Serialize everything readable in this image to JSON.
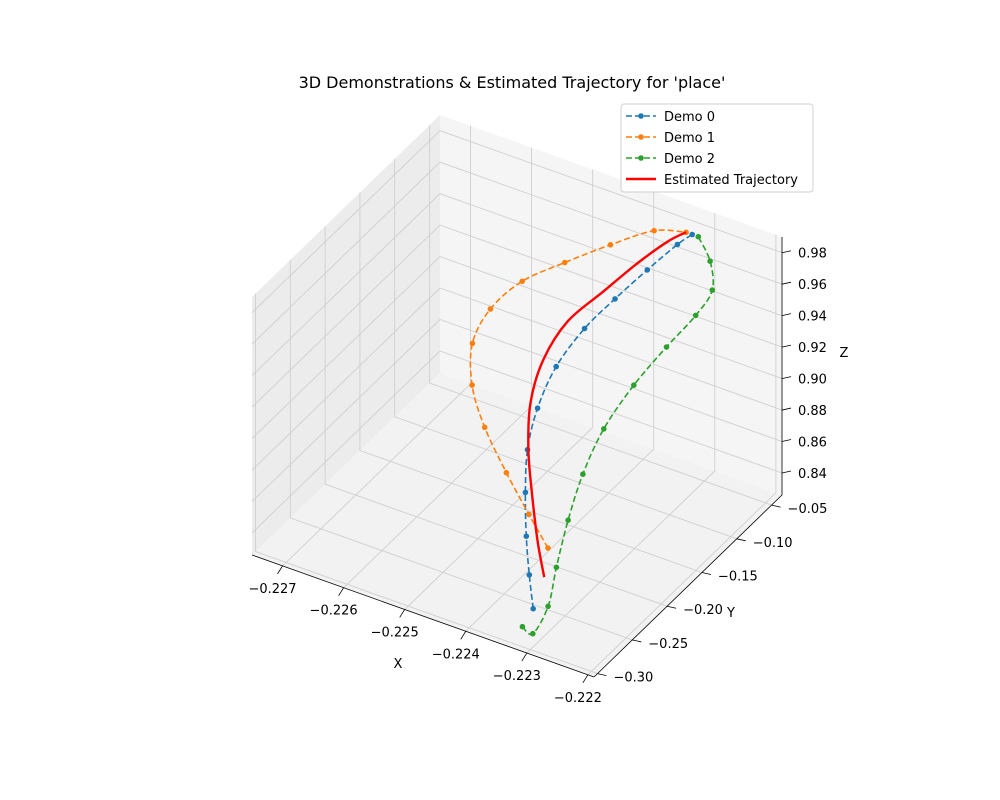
{
  "chart_data": {
    "type": "line3d",
    "title": "3D Demonstrations & Estimated Trajectory for 'place'",
    "xlabel": "X",
    "ylabel": "Y",
    "zlabel": "Z",
    "xticks": [
      "−0.227",
      "−0.226",
      "−0.225",
      "−0.224",
      "−0.223",
      "−0.222"
    ],
    "yticks": [
      "−0.30",
      "−0.25",
      "−0.20",
      "−0.15",
      "−0.10",
      "−0.05"
    ],
    "zticks": [
      "0.84",
      "0.86",
      "0.88",
      "0.90",
      "0.92",
      "0.94",
      "0.96",
      "0.98"
    ],
    "xlim": [
      -0.2275,
      -0.2219
    ],
    "ylim": [
      -0.305,
      -0.035
    ],
    "zlim": [
      0.826,
      0.99
    ],
    "grid": true,
    "legend_position": "top-right",
    "series": [
      {
        "name": "Demo 0",
        "color": "#1f77b4",
        "style": "dashed",
        "marker": "dot",
        "points": [
          {
            "x": -0.22318,
            "y": -0.28,
            "z": 0.841
          },
          {
            "x": -0.22345,
            "y": -0.262,
            "z": 0.851
          },
          {
            "x": -0.22375,
            "y": -0.24,
            "z": 0.862
          },
          {
            "x": -0.22405,
            "y": -0.215,
            "z": 0.875
          },
          {
            "x": -0.2243,
            "y": -0.19,
            "z": 0.888
          },
          {
            "x": -0.22442,
            "y": -0.165,
            "z": 0.902
          },
          {
            "x": -0.2244,
            "y": -0.14,
            "z": 0.918
          },
          {
            "x": -0.22422,
            "y": -0.115,
            "z": 0.934
          },
          {
            "x": -0.22395,
            "y": -0.095,
            "z": 0.948
          },
          {
            "x": -0.22365,
            "y": -0.075,
            "z": 0.962
          },
          {
            "x": -0.22335,
            "y": -0.058,
            "z": 0.975
          },
          {
            "x": -0.2232,
            "y": -0.05,
            "z": 0.98
          }
        ]
      },
      {
        "name": "Demo 1",
        "color": "#ff7f0e",
        "style": "dashed",
        "marker": "dot",
        "points": [
          {
            "x": -0.22385,
            "y": -0.2,
            "z": 0.836
          },
          {
            "x": -0.2243,
            "y": -0.188,
            "z": 0.846
          },
          {
            "x": -0.22485,
            "y": -0.172,
            "z": 0.858
          },
          {
            "x": -0.2254,
            "y": -0.155,
            "z": 0.872
          },
          {
            "x": -0.2258,
            "y": -0.138,
            "z": 0.886
          },
          {
            "x": -0.226,
            "y": -0.12,
            "z": 0.902
          },
          {
            "x": -0.2259,
            "y": -0.103,
            "z": 0.918
          },
          {
            "x": -0.22555,
            "y": -0.088,
            "z": 0.934
          },
          {
            "x": -0.225,
            "y": -0.075,
            "z": 0.948
          },
          {
            "x": -0.2244,
            "y": -0.062,
            "z": 0.962
          },
          {
            "x": -0.2238,
            "y": -0.052,
            "z": 0.975
          },
          {
            "x": -0.2233,
            "y": -0.05,
            "z": 0.98
          }
        ]
      },
      {
        "name": "Demo 2",
        "color": "#2ca02c",
        "style": "dashed",
        "marker": "dot",
        "points": [
          {
            "x": -0.2233,
            "y": -0.285,
            "z": 0.83
          },
          {
            "x": -0.22305,
            "y": -0.292,
            "z": 0.832
          },
          {
            "x": -0.22305,
            "y": -0.27,
            "z": 0.84
          },
          {
            "x": -0.2232,
            "y": -0.245,
            "z": 0.852
          },
          {
            "x": -0.22335,
            "y": -0.215,
            "z": 0.867
          },
          {
            "x": -0.22345,
            "y": -0.185,
            "z": 0.882
          },
          {
            "x": -0.22345,
            "y": -0.155,
            "z": 0.898
          },
          {
            "x": -0.2233,
            "y": -0.125,
            "z": 0.915
          },
          {
            "x": -0.22305,
            "y": -0.1,
            "z": 0.932
          },
          {
            "x": -0.2228,
            "y": -0.08,
            "z": 0.947
          },
          {
            "x": -0.2227,
            "y": -0.065,
            "z": 0.958
          },
          {
            "x": -0.22285,
            "y": -0.055,
            "z": 0.97
          },
          {
            "x": -0.2231,
            "y": -0.05,
            "z": 0.98
          }
        ]
      },
      {
        "name": "Estimated Trajectory",
        "color": "#ff0000",
        "style": "solid",
        "marker": "none",
        "points": [
          {
            "x": -0.2234,
            "y": -0.245,
            "z": 0.843
          },
          {
            "x": -0.2237,
            "y": -0.228,
            "z": 0.854
          },
          {
            "x": -0.22405,
            "y": -0.205,
            "z": 0.868
          },
          {
            "x": -0.2244,
            "y": -0.18,
            "z": 0.882
          },
          {
            "x": -0.22465,
            "y": -0.155,
            "z": 0.898
          },
          {
            "x": -0.2247,
            "y": -0.132,
            "z": 0.915
          },
          {
            "x": -0.22455,
            "y": -0.11,
            "z": 0.932
          },
          {
            "x": -0.2242,
            "y": -0.09,
            "z": 0.947
          },
          {
            "x": -0.22385,
            "y": -0.072,
            "z": 0.962
          },
          {
            "x": -0.2235,
            "y": -0.058,
            "z": 0.975
          },
          {
            "x": -0.2233,
            "y": -0.05,
            "z": 0.98
          }
        ]
      }
    ]
  }
}
